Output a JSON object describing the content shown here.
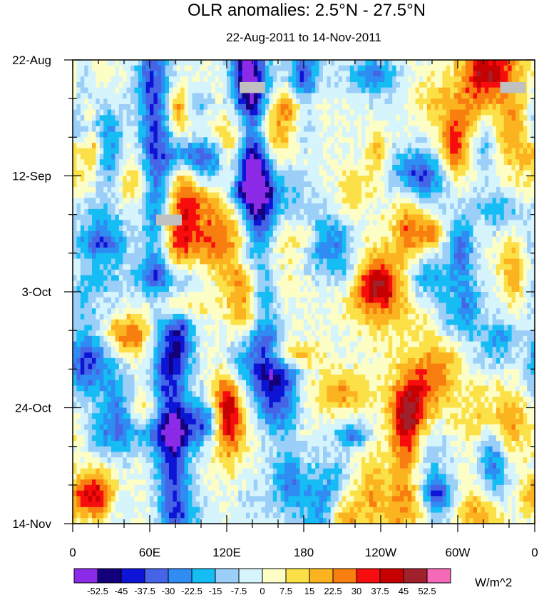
{
  "chart_data": {
    "type": "heatmap",
    "title": "OLR anomalies: 2.5°N - 27.5°N",
    "subtitle": "22-Aug-2011 to 14-Nov-2011",
    "xlabel": "",
    "ylabel": "",
    "x_ticks": [
      "0",
      "60E",
      "120E",
      "180",
      "120W",
      "60W",
      "0"
    ],
    "x_tick_values": [
      0,
      60,
      120,
      180,
      240,
      300,
      360
    ],
    "x_range": [
      0,
      360
    ],
    "y_ticks": [
      "22-Aug",
      "12-Sep",
      "3-Oct",
      "24-Oct",
      "14-Nov"
    ],
    "y_tick_values": [
      0,
      21,
      42,
      63,
      84
    ],
    "y_range": [
      0,
      84
    ],
    "y_direction": "time increases downward",
    "colorbar": {
      "units": "W/m^2",
      "levels": [
        "-52.5",
        "-45",
        "-37.5",
        "-30",
        "-22.5",
        "-15",
        "-7.5",
        "0",
        "7.5",
        "15",
        "22.5",
        "30",
        "37.5",
        "45",
        "52.5"
      ],
      "colors": [
        "#8b2be8",
        "#14007a",
        "#0e14d6",
        "#4664e6",
        "#2e8cf2",
        "#16bcf4",
        "#9ccff8",
        "#d6f4fc",
        "#fdfdc6",
        "#fce048",
        "#fbb420",
        "#f97e10",
        "#f70d0d",
        "#c70000",
        "#a0202b",
        "#f46ab8"
      ]
    },
    "features": [
      {
        "name": "negative band near 60E-80E",
        "lon_start": 62,
        "lon_end": 80,
        "day_start": 3,
        "day_end": 84,
        "value": -37.5
      },
      {
        "name": "negative band west Pacific",
        "lon_start": 138,
        "lon_end": 150,
        "day_start": 0,
        "day_end": 55,
        "value": -37.5
      },
      {
        "name": "positive anomaly near 80E",
        "lon": 78,
        "day_start": 25,
        "day_end": 50,
        "value": 37.5
      },
      {
        "name": "positive anomaly near 120E",
        "lon": 122,
        "day_start": 58,
        "day_end": 72,
        "value": 30
      },
      {
        "name": "positive anomaly near 100W",
        "lon": 260,
        "day_start": 58,
        "day_end": 75,
        "value": 30
      }
    ],
    "missing_data_blocks": [
      {
        "lon_start": 130,
        "lon_end": 150,
        "day_start": 4,
        "day_end": 6
      },
      {
        "lon_start": 65,
        "lon_end": 85,
        "day_start": 28,
        "day_end": 30
      },
      {
        "lon_start": 333,
        "lon_end": 353,
        "day_start": 4,
        "day_end": 6
      }
    ]
  }
}
